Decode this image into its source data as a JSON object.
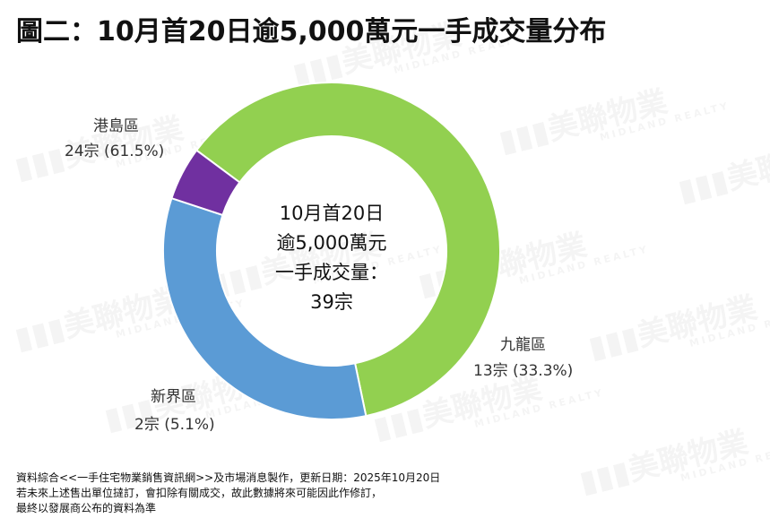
{
  "title": "圖二：10月首20日逾5,000萬元一手成交量分布",
  "chart_data": {
    "type": "pie",
    "slices": [
      {
        "label": "港島區",
        "value": 24,
        "percent": 61.5,
        "display_value": "24宗 (61.5%)",
        "color": "#92d050"
      },
      {
        "label": "九龍區",
        "value": 13,
        "percent": 33.3,
        "display_value": "13宗 (33.3%)",
        "color": "#5b9bd5"
      },
      {
        "label": "新界區",
        "value": 2,
        "percent": 5.1,
        "display_value": "2宗 (5.1%)",
        "color": "#7030a0"
      }
    ],
    "center_lines": [
      "10月首20日",
      "逾5,000萬元",
      "一手成交量：",
      "39宗"
    ]
  },
  "source_lines": [
    "資料綜合<<一手住宅物業銷售資訊網>>及市場消息製作，更新日期：2025年10月20日",
    "若未來上述售出單位撻訂，會扣除有關成交，故此數據將來可能因此作修訂，",
    "最終以發展商公布的資料為準"
  ],
  "watermark": {
    "brand": "美聯物業",
    "brand_en": "MIDLAND REALTY"
  }
}
